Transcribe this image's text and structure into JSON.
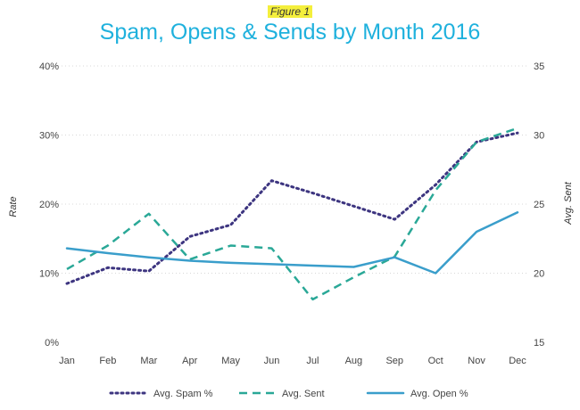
{
  "figure_label": "Figure 1",
  "colors": {
    "spam": "#3d3580",
    "sent": "#2aa897",
    "open": "#3a9ecb",
    "title": "#1fb1dd",
    "grid": "#d8d8d8"
  },
  "chart_data": {
    "type": "line",
    "title": "Spam, Opens & Sends by Month 2016",
    "categories": [
      "Jan",
      "Feb",
      "Mar",
      "Apr",
      "May",
      "Jun",
      "Jul",
      "Aug",
      "Sep",
      "Oct",
      "Nov",
      "Dec"
    ],
    "ylabel_left": "Rate",
    "ylabel_right": "Avg. Sent",
    "ylim_left": [
      0,
      40
    ],
    "ylim_right": [
      15,
      35
    ],
    "yticks_left": [
      "0%",
      "10%",
      "20%",
      "30%",
      "40%"
    ],
    "yticks_right": [
      "15",
      "20",
      "25",
      "30",
      "35"
    ],
    "grid": true,
    "legend_position": "bottom",
    "series": [
      {
        "name": "Avg. Spam %",
        "axis": "left",
        "style": "dotted",
        "values": [
          8.5,
          10.8,
          10.3,
          15.3,
          17.0,
          23.4,
          21.6,
          19.7,
          17.8,
          22.8,
          29.0,
          30.3
        ]
      },
      {
        "name": "Avg. Sent",
        "axis": "right",
        "style": "dashed",
        "values": [
          20.3,
          22.0,
          24.3,
          21.0,
          22.0,
          21.8,
          18.1,
          19.7,
          21.2,
          26.0,
          29.5,
          30.5
        ]
      },
      {
        "name": "Avg. Open %",
        "axis": "left",
        "style": "solid",
        "values": [
          13.6,
          12.9,
          12.3,
          11.8,
          11.5,
          11.3,
          11.1,
          10.9,
          12.3,
          10.0,
          16.0,
          18.8
        ]
      }
    ]
  }
}
